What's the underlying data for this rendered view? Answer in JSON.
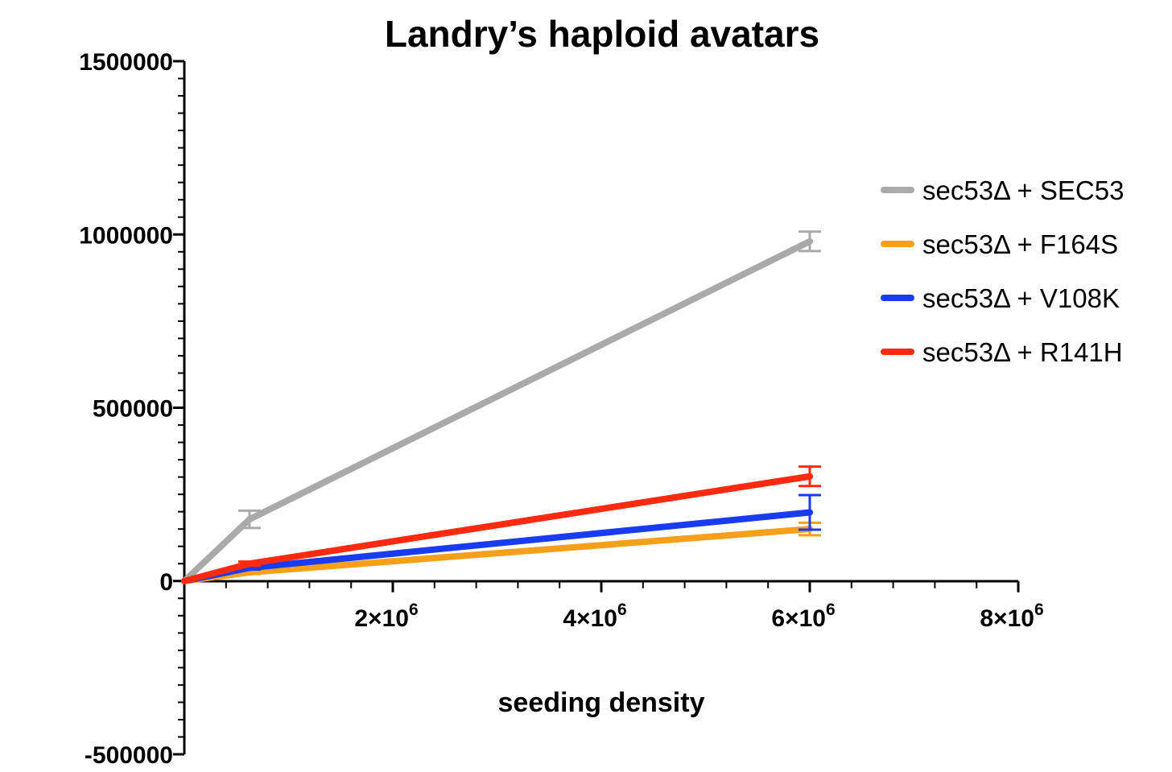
{
  "chart_data": {
    "type": "line",
    "title": "Landry’s haploid avatars",
    "xlabel": "seeding density",
    "ylabel": "",
    "xlim": [
      0,
      8000000
    ],
    "ylim": [
      -500000,
      1500000
    ],
    "x_ticks": [
      {
        "value": 2000000,
        "base": "2×10",
        "exp": "6"
      },
      {
        "value": 4000000,
        "base": "4×10",
        "exp": "6"
      },
      {
        "value": 6000000,
        "base": "6×10",
        "exp": "6"
      },
      {
        "value": 8000000,
        "base": "8×10",
        "exp": "6"
      }
    ],
    "y_ticks": [
      {
        "value": 1500000,
        "label": "1500000"
      },
      {
        "value": 1000000,
        "label": "1000000"
      },
      {
        "value": 500000,
        "label": "500000"
      },
      {
        "value": 0,
        "label": "0"
      },
      {
        "value": -500000,
        "label": "-500000"
      }
    ],
    "legend_position": "right",
    "grid": false,
    "series": [
      {
        "name": "sec53Δ + SEC53",
        "color": "#aaaaaa",
        "x": [
          0,
          625000,
          6000000
        ],
        "y": [
          0,
          178000,
          980000
        ],
        "err": [
          0,
          25000,
          28000
        ]
      },
      {
        "name": "sec53Δ + F164S",
        "color": "#f5a01a",
        "x": [
          0,
          625000,
          6000000
        ],
        "y": [
          0,
          25000,
          150000
        ],
        "err": [
          0,
          5000,
          18000
        ]
      },
      {
        "name": "sec53Δ + V108K",
        "color": "#1a3cf0",
        "x": [
          0,
          625000,
          6000000
        ],
        "y": [
          0,
          38000,
          198000
        ],
        "err": [
          0,
          5000,
          50000
        ]
      },
      {
        "name": "sec53Δ + R141H",
        "color": "#ff2a10",
        "x": [
          0,
          625000,
          6000000
        ],
        "y": [
          0,
          50000,
          302000
        ],
        "err": [
          0,
          6000,
          28000
        ]
      }
    ]
  }
}
